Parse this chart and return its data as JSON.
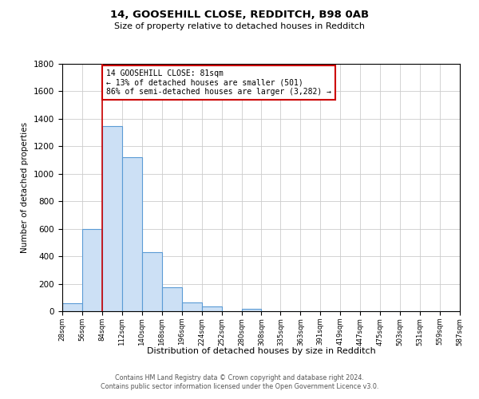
{
  "title1": "14, GOOSEHILL CLOSE, REDDITCH, B98 0AB",
  "title2": "Size of property relative to detached houses in Redditch",
  "xlabel": "Distribution of detached houses by size in Redditch",
  "ylabel": "Number of detached properties",
  "bin_edges": [
    28,
    56,
    84,
    112,
    140,
    168,
    196,
    224,
    252,
    280,
    308,
    335,
    363,
    391,
    419,
    447,
    475,
    503,
    531,
    559,
    587
  ],
  "bar_heights": [
    60,
    600,
    1350,
    1120,
    430,
    175,
    65,
    35,
    0,
    15,
    0,
    0,
    0,
    0,
    0,
    0,
    0,
    0,
    0,
    0
  ],
  "bar_color": "#cce0f5",
  "bar_edge_color": "#5b9bd5",
  "vline_x": 84,
  "vline_color": "#cc0000",
  "annotation_text": "14 GOOSEHILL CLOSE: 81sqm\n← 13% of detached houses are smaller (501)\n86% of semi-detached houses are larger (3,282) →",
  "annotation_box_color": "#ffffff",
  "annotation_box_edge": "#cc0000",
  "ylim": [
    0,
    1800
  ],
  "yticks": [
    0,
    200,
    400,
    600,
    800,
    1000,
    1200,
    1400,
    1600,
    1800
  ],
  "tick_labels": [
    "28sqm",
    "56sqm",
    "84sqm",
    "112sqm",
    "140sqm",
    "168sqm",
    "196sqm",
    "224sqm",
    "252sqm",
    "280sqm",
    "308sqm",
    "335sqm",
    "363sqm",
    "391sqm",
    "419sqm",
    "447sqm",
    "475sqm",
    "503sqm",
    "531sqm",
    "559sqm",
    "587sqm"
  ],
  "footer1": "Contains HM Land Registry data © Crown copyright and database right 2024.",
  "footer2": "Contains public sector information licensed under the Open Government Licence v3.0.",
  "bg_color": "#ffffff",
  "grid_color": "#cccccc"
}
